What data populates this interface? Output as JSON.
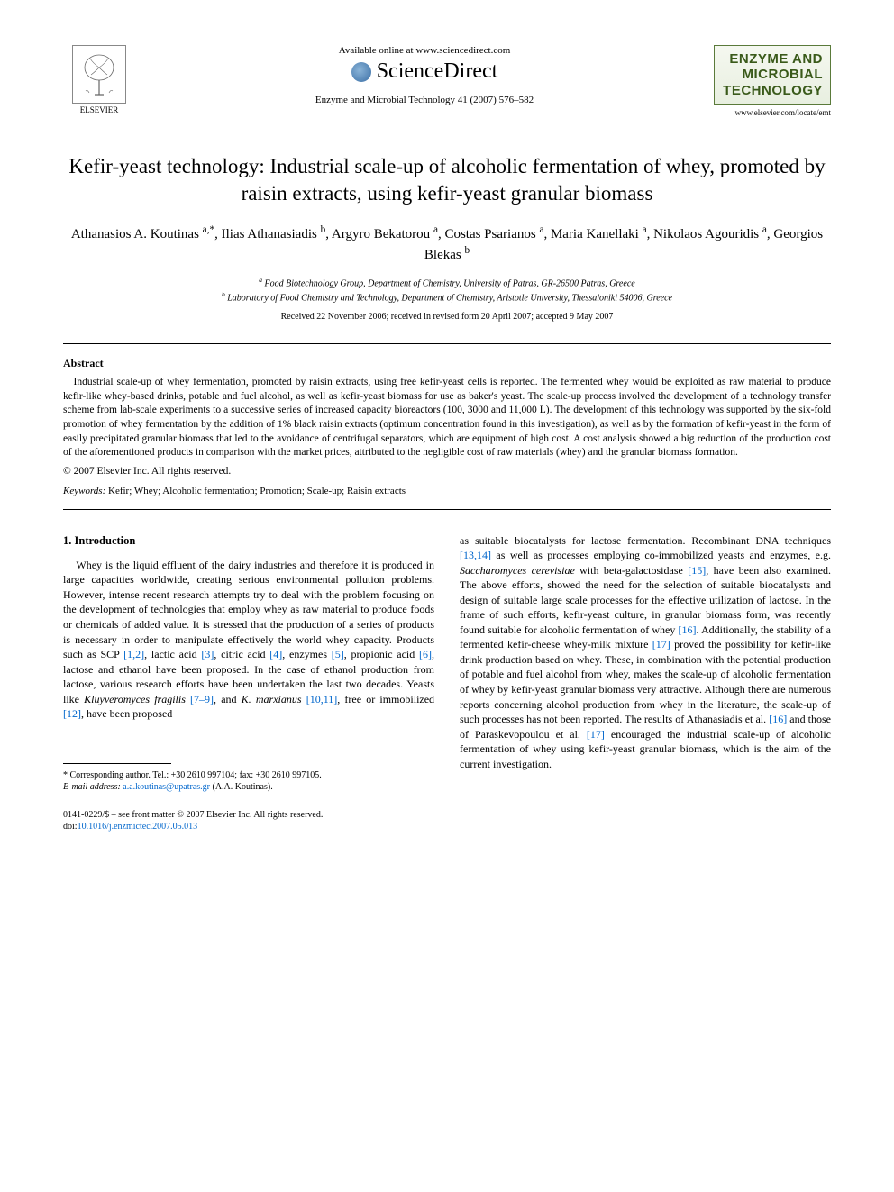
{
  "header": {
    "available_online": "Available online at www.sciencedirect.com",
    "sciencedirect": "ScienceDirect",
    "journal_ref": "Enzyme and Microbial Technology 41 (2007) 576–582",
    "elsevier_label": "ELSEVIER",
    "journal_name_line1": "ENZYME AND",
    "journal_name_line2": "MICROBIAL",
    "journal_name_line3": "TECHNOLOGY",
    "journal_url": "www.elsevier.com/locate/emt"
  },
  "title": "Kefir-yeast technology: Industrial scale-up of alcoholic fermentation of whey, promoted by raisin extracts, using kefir-yeast granular biomass",
  "authors_html": "Athanasios A. Koutinas <sup>a,*</sup>, Ilias Athanasiadis <sup>b</sup>, Argyro Bekatorou <sup>a</sup>, Costas Psarianos <sup>a</sup>, Maria Kanellaki <sup>a</sup>, Nikolaos Agouridis <sup>a</sup>, Georgios Blekas <sup>b</sup>",
  "affiliations": {
    "a": "Food Biotechnology Group, Department of Chemistry, University of Patras, GR-26500 Patras, Greece",
    "b": "Laboratory of Food Chemistry and Technology, Department of Chemistry, Aristotle University, Thessaloniki 54006, Greece"
  },
  "dates": "Received 22 November 2006; received in revised form 20 April 2007; accepted 9 May 2007",
  "abstract": {
    "heading": "Abstract",
    "text": "Industrial scale-up of whey fermentation, promoted by raisin extracts, using free kefir-yeast cells is reported. The fermented whey would be exploited as raw material to produce kefir-like whey-based drinks, potable and fuel alcohol, as well as kefir-yeast biomass for use as baker's yeast. The scale-up process involved the development of a technology transfer scheme from lab-scale experiments to a successive series of increased capacity bioreactors (100, 3000 and 11,000 L). The development of this technology was supported by the six-fold promotion of whey fermentation by the addition of 1% black raisin extracts (optimum concentration found in this investigation), as well as by the formation of kefir-yeast in the form of easily precipitated granular biomass that led to the avoidance of centrifugal separators, which are equipment of high cost. A cost analysis showed a big reduction of the production cost of the aforementioned products in comparison with the market prices, attributed to the negligible cost of raw materials (whey) and the granular biomass formation.",
    "copyright": "© 2007 Elsevier Inc. All rights reserved."
  },
  "keywords": {
    "label": "Keywords:",
    "text": "Kefir; Whey; Alcoholic fermentation; Promotion; Scale-up; Raisin extracts"
  },
  "section1": {
    "heading": "1. Introduction",
    "col1": "Whey is the liquid effluent of the dairy industries and therefore it is produced in large capacities worldwide, creating serious environmental pollution problems. However, intense recent research attempts try to deal with the problem focusing on the development of technologies that employ whey as raw material to produce foods or chemicals of added value. It is stressed that the production of a series of products is necessary in order to manipulate effectively the world whey capacity. Products such as SCP [1,2], lactic acid [3], citric acid [4], enzymes [5], propionic acid [6], lactose and ethanol have been proposed. In the case of ethanol production from lactose, various research efforts have been undertaken the last two decades. Yeasts like Kluyveromyces fragilis [7–9], and K. marxianus [10,11], free or immobilized [12], have been proposed",
    "col2": "as suitable biocatalysts for lactose fermentation. Recombinant DNA techniques [13,14] as well as processes employing co-immobilized yeasts and enzymes, e.g. Saccharomyces cerevisiae with beta-galactosidase [15], have been also examined. The above efforts, showed the need for the selection of suitable biocatalysts and design of suitable large scale processes for the effective utilization of lactose. In the frame of such efforts, kefir-yeast culture, in granular biomass form, was recently found suitable for alcoholic fermentation of whey [16]. Additionally, the stability of a fermented kefir-cheese whey-milk mixture [17] proved the possibility for kefir-like drink production based on whey. These, in combination with the potential production of potable and fuel alcohol from whey, makes the scale-up of alcoholic fermentation of whey by kefir-yeast granular biomass very attractive. Although there are numerous reports concerning alcohol production from whey in the literature, the scale-up of such processes has not been reported. The results of Athanasiadis et al. [16] and those of Paraskevopoulou et al. [17] encouraged the industrial scale-up of alcoholic fermentation of whey using kefir-yeast granular biomass, which is the aim of the current investigation."
  },
  "footnote": {
    "corresponding": "* Corresponding author. Tel.: +30 2610 997104; fax: +30 2610 997105.",
    "email_label": "E-mail address:",
    "email": "a.a.koutinas@upatras.gr",
    "email_tail": "(A.A. Koutinas)."
  },
  "footer": {
    "line1": "0141-0229/$ – see front matter © 2007 Elsevier Inc. All rights reserved.",
    "doi": "doi:10.1016/j.enzmictec.2007.05.013"
  },
  "colors": {
    "link": "#0066cc",
    "journal_green": "#3a5a1a",
    "rule": "#000000"
  }
}
